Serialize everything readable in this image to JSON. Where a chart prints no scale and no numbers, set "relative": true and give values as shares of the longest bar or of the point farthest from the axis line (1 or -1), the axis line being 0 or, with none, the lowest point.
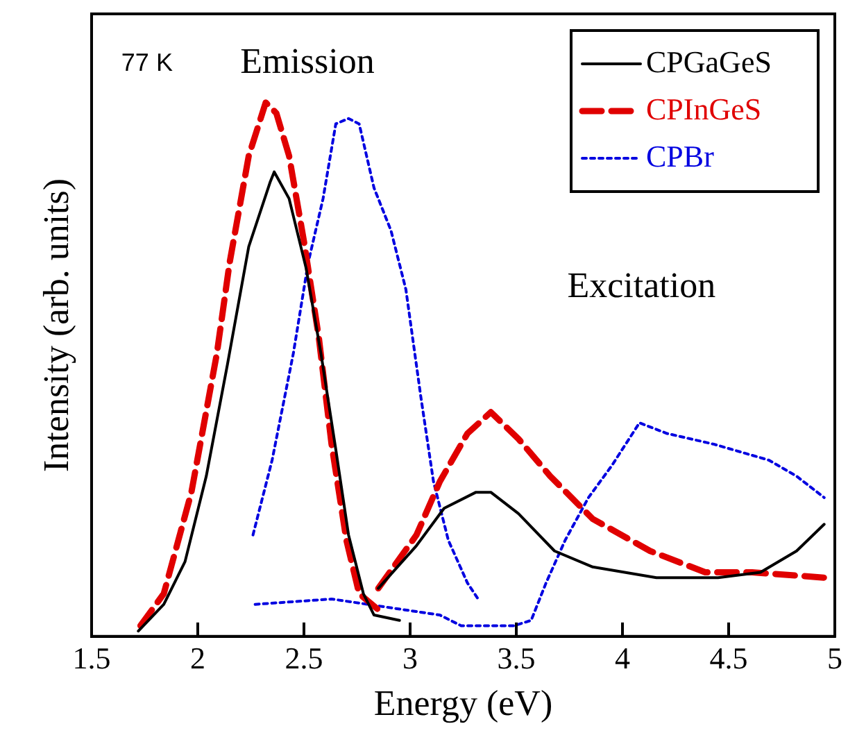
{
  "chart_data": {
    "type": "line",
    "relative": true,
    "xlabel": "Energy (eV)",
    "ylabel": "Intensity (arb. units)",
    "xlim": [
      1.5,
      5
    ],
    "xticks": [
      1.5,
      2,
      2.5,
      3,
      3.5,
      4,
      4.5,
      5
    ],
    "grid": false,
    "legend": "top right",
    "marker": "none",
    "tick_labels": "x",
    "annotations": [
      "77 K",
      "Emission",
      "Excitation"
    ],
    "series": [
      {
        "name": "CPGaGeS",
        "color": "#000000",
        "line_style": "solid",
        "x": [
          1.72,
          1.84,
          1.94,
          2.04,
          2.14,
          2.24,
          2.34,
          2.36,
          2.43,
          2.51,
          2.58,
          2.65,
          2.71,
          2.78,
          2.83,
          2.95
        ],
        "values": [
          0.01,
          0.06,
          0.14,
          0.3,
          0.51,
          0.73,
          0.85,
          0.87,
          0.82,
          0.69,
          0.53,
          0.35,
          0.19,
          0.08,
          0.04,
          0.03
        ]
      },
      {
        "color": "#000000",
        "line_style": "solid",
        "x": [
          2.85,
          3.03,
          3.16,
          3.31,
          3.38,
          3.51,
          3.68,
          3.86,
          4.16,
          4.45,
          4.65,
          4.82,
          4.95
        ],
        "values": [
          0.09,
          0.17,
          0.24,
          0.27,
          0.27,
          0.23,
          0.16,
          0.13,
          0.11,
          0.11,
          0.12,
          0.16,
          0.21
        ]
      },
      {
        "name": "CPInGeS",
        "color": "#e00000",
        "line_style": "dashed",
        "x": [
          1.73,
          1.84,
          1.97,
          2.09,
          2.15,
          2.24,
          2.32,
          2.37,
          2.43,
          2.5,
          2.57,
          2.63,
          2.7,
          2.76,
          2.88
        ],
        "values": [
          0.02,
          0.08,
          0.27,
          0.53,
          0.7,
          0.9,
          1,
          0.98,
          0.9,
          0.74,
          0.56,
          0.36,
          0.18,
          0.08,
          0.04
        ]
      },
      {
        "color": "#e00000",
        "line_style": "dashed",
        "x": [
          2.85,
          3.03,
          3.14,
          3.27,
          3.38,
          3.51,
          3.66,
          3.86,
          4.13,
          4.39,
          4.61,
          4.95
        ],
        "values": [
          0.09,
          0.19,
          0.29,
          0.38,
          0.42,
          0.37,
          0.3,
          0.22,
          0.16,
          0.12,
          0.12,
          0.11
        ]
      },
      {
        "name": "CPBr",
        "color": "#0000e0",
        "line_style": "dotted",
        "x": [
          2.26,
          2.35,
          2.45,
          2.52,
          2.59,
          2.65,
          2.71,
          2.76,
          2.83,
          2.91,
          2.98,
          3.05,
          3.11,
          3.18,
          3.27,
          3.32
        ],
        "values": [
          0.19,
          0.33,
          0.53,
          0.7,
          0.82,
          0.96,
          0.97,
          0.96,
          0.84,
          0.76,
          0.65,
          0.45,
          0.29,
          0.18,
          0.1,
          0.07
        ]
      },
      {
        "color": "#0000e0",
        "line_style": "dotted",
        "x": [
          2.27,
          2.63,
          3.14,
          3.24,
          3.49,
          3.57,
          3.64,
          3.73,
          3.84,
          3.95,
          4.08,
          4.21,
          4.43,
          4.69,
          4.82,
          4.95
        ],
        "values": [
          0.06,
          0.07,
          0.04,
          0.02,
          0.02,
          0.03,
          0.1,
          0.18,
          0.26,
          0.32,
          0.4,
          0.38,
          0.36,
          0.33,
          0.3,
          0.26
        ]
      }
    ]
  }
}
